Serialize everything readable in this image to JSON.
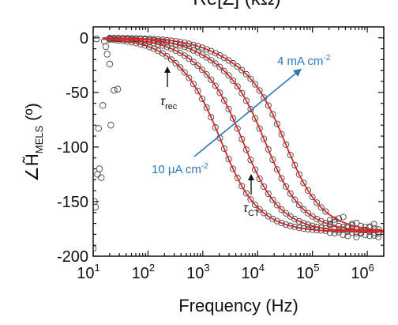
{
  "chart_data": {
    "type": "scatter",
    "x_scale": "log",
    "xlim": [
      10,
      2000000
    ],
    "ylim": [
      -200,
      10
    ],
    "xlabel": "Frequency (Hz)",
    "ylabel_main": "∠H̃",
    "ylabel_sub": "MELS",
    "ylabel_unit": "(º)",
    "top_axis_label": "Re[Z] (kΩ)",
    "x_ticks": [
      {
        "value": 10,
        "base": "10",
        "exp": "1"
      },
      {
        "value": 100,
        "base": "10",
        "exp": "2"
      },
      {
        "value": 1000,
        "base": "10",
        "exp": "3"
      },
      {
        "value": 10000,
        "base": "10",
        "exp": "4"
      },
      {
        "value": 100000,
        "base": "10",
        "exp": "5"
      },
      {
        "value": 1000000,
        "base": "10",
        "exp": "6"
      }
    ],
    "y_ticks": [
      {
        "value": 0,
        "label": "0"
      },
      {
        "value": -50,
        "label": "-50"
      },
      {
        "value": -100,
        "label": "-100"
      },
      {
        "value": -150,
        "label": "-150"
      },
      {
        "value": -200,
        "label": "-200"
      }
    ],
    "grid": false,
    "marker_color": "#444444",
    "fit_color": "#d62728",
    "annotation_color": "#2a7ab8",
    "series": [
      {
        "label": "10 μA cm⁻²",
        "f_rec": 300,
        "f_ct": 2200,
        "plateau": -178
      },
      {
        "label": "",
        "f_rec": 500,
        "f_ct": 5500,
        "plateau": -178
      },
      {
        "label": "",
        "f_rec": 900,
        "f_ct": 14000,
        "plateau": -178
      },
      {
        "label": "4 mA cm⁻²",
        "f_rec": 1500,
        "f_ct": 32000,
        "plateau": -178
      }
    ],
    "low_freq_scatter": [
      [
        10,
        -193
      ],
      [
        10.5,
        -150
      ],
      [
        11,
        -155
      ],
      [
        12,
        -125
      ],
      [
        13,
        -120
      ],
      [
        14,
        -128
      ],
      [
        12.5,
        -83
      ],
      [
        15,
        -62
      ],
      [
        16,
        -3
      ],
      [
        17,
        -8
      ],
      [
        18,
        -15
      ],
      [
        20,
        -24
      ],
      [
        21,
        -80
      ],
      [
        24,
        -48
      ],
      [
        28,
        -47
      ],
      [
        11.5,
        -1
      ]
    ],
    "annotations": [
      {
        "text": "4 mA cm",
        "sup": "-2",
        "role": "high-current"
      },
      {
        "text": "10 μA cm",
        "sup": "-2",
        "role": "low-current"
      },
      {
        "text": "τ",
        "sub": "rec",
        "role": "tau-rec"
      },
      {
        "text": "τ",
        "sub": "CT",
        "role": "tau-ct"
      }
    ]
  }
}
